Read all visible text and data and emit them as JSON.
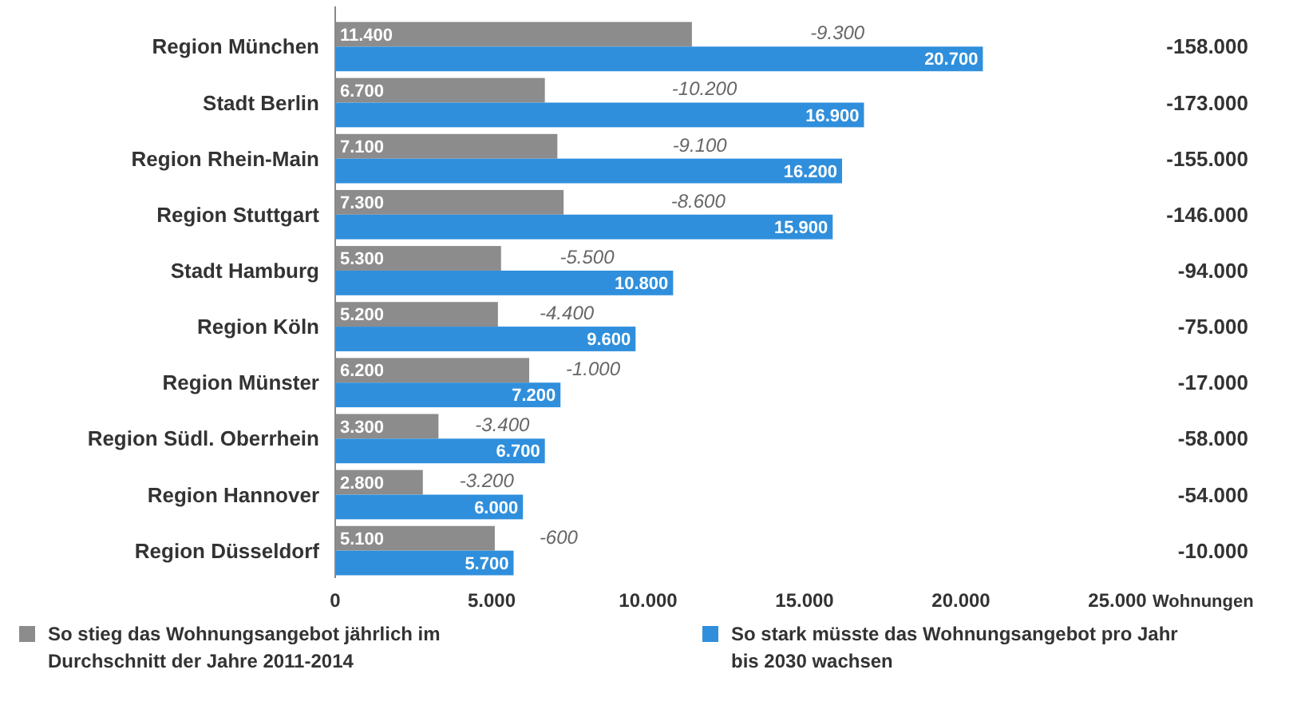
{
  "chart_data": {
    "type": "bar",
    "orientation": "horizontal",
    "xlabel": "Wohnungen",
    "categories": [
      "Region München",
      "Stadt Berlin",
      "Region Rhein-Main",
      "Region Stuttgart",
      "Stadt Hamburg",
      "Region Köln",
      "Region Münster",
      "Region Südl. Oberrhein",
      "Region Hannover",
      "Region Düsseldorf"
    ],
    "series": [
      {
        "name": "So stieg das Wohnungsangebot jährlich im Durchschnitt der Jahre 2011-2014",
        "color": "#8c8c8c",
        "values": [
          11400,
          6700,
          7100,
          7300,
          5300,
          5200,
          6200,
          3300,
          2800,
          5100
        ],
        "value_labels": [
          "11.400",
          "6.700",
          "7.100",
          "7.300",
          "5.300",
          "5.200",
          "6.200",
          "3.300",
          "2.800",
          "5.100"
        ]
      },
      {
        "name": "So stark müsste das Wohnungsangebot pro Jahr bis 2030 wachsen",
        "color": "#2f8fdc",
        "values": [
          20700,
          16900,
          16200,
          15900,
          10800,
          9600,
          7200,
          6700,
          6000,
          5700
        ],
        "value_labels": [
          "20.700",
          "16.900",
          "16.200",
          "15.900",
          "10.800",
          "9.600",
          "7.200",
          "6.700",
          "6.000",
          "5.700"
        ]
      }
    ],
    "xlim": [
      0,
      25000
    ],
    "xticks": [
      {
        "value": 0,
        "label": "0"
      },
      {
        "value": 5000,
        "label": "5.000"
      },
      {
        "value": 10000,
        "label": "10.000"
      },
      {
        "value": 15000,
        "label": "15.000"
      },
      {
        "value": 20000,
        "label": "20.000"
      },
      {
        "value": 25000,
        "label": "25.000"
      }
    ],
    "grid": false,
    "legend": "bottom",
    "annotations": [
      "-9.300",
      "-10.200",
      "-9.100",
      "-8.600",
      "-5.500",
      "-4.400",
      "-1.000",
      "-3.400",
      "-3.200",
      "-600",
      "-158.000",
      "-173.000",
      "-155.000",
      "-146.000",
      "-94.000",
      "-75.000",
      "-17.000",
      "-58.000",
      "-54.000",
      "-10.000"
    ]
  }
}
